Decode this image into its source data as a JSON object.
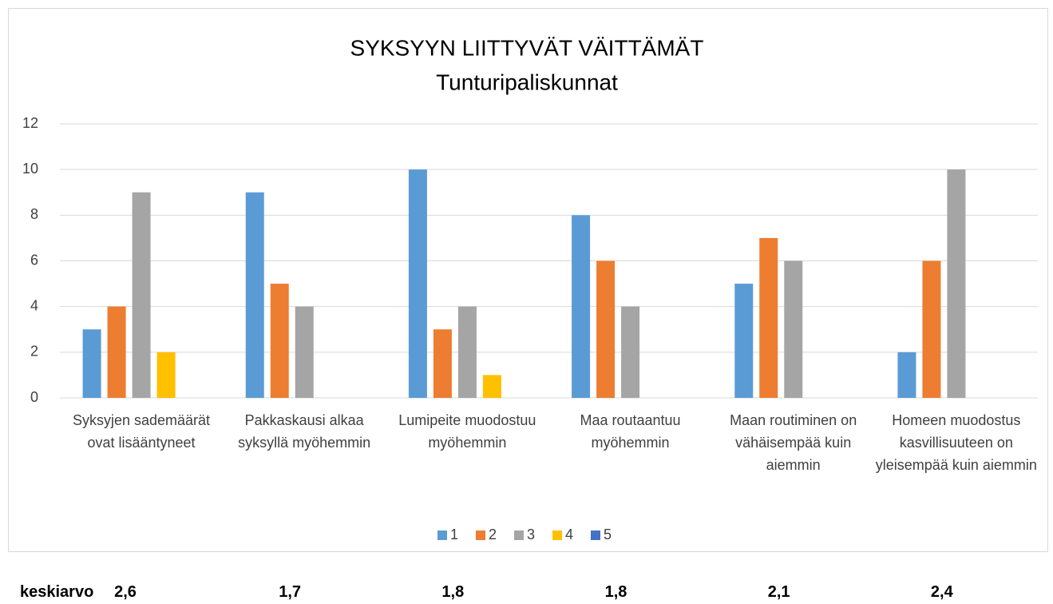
{
  "chart_data": {
    "type": "bar",
    "title": "SYKSYYN LIITTYVÄT VÄITTÄMÄT",
    "subtitle": "Tunturipaliskunnat",
    "categories": [
      "Syksyjen sademäärät ovat lisääntyneet",
      "Pakkaskausi alkaa syksyllä myöhemmin",
      "Lumipeite muodostuu myöhemmin",
      "Maa routaantuu myöhemmin",
      "Maan routiminen on vähäisempää kuin aiemmin",
      "Homeen muodostus kasvillisuuteen on yleisempää kuin aiemmin"
    ],
    "series": [
      {
        "name": "1",
        "color": "#5b9bd5",
        "values": [
          3,
          9,
          10,
          8,
          5,
          2
        ]
      },
      {
        "name": "2",
        "color": "#ed7d31",
        "values": [
          4,
          5,
          3,
          6,
          7,
          6
        ]
      },
      {
        "name": "3",
        "color": "#a5a5a5",
        "values": [
          9,
          4,
          4,
          4,
          6,
          10
        ]
      },
      {
        "name": "4",
        "color": "#ffc000",
        "values": [
          2,
          0,
          1,
          0,
          0,
          0
        ]
      },
      {
        "name": "5",
        "color": "#4472c4",
        "values": [
          0,
          0,
          0,
          0,
          0,
          0
        ]
      }
    ],
    "ylim": [
      0,
      12
    ],
    "yticks": [
      0,
      2,
      4,
      6,
      8,
      10,
      12
    ],
    "grid": true,
    "legend": "bottom"
  },
  "summary": {
    "label": "keskiarvo",
    "values": [
      "2,6",
      "1,7",
      "1,8",
      "1,8",
      "2,1",
      "2,4"
    ]
  }
}
